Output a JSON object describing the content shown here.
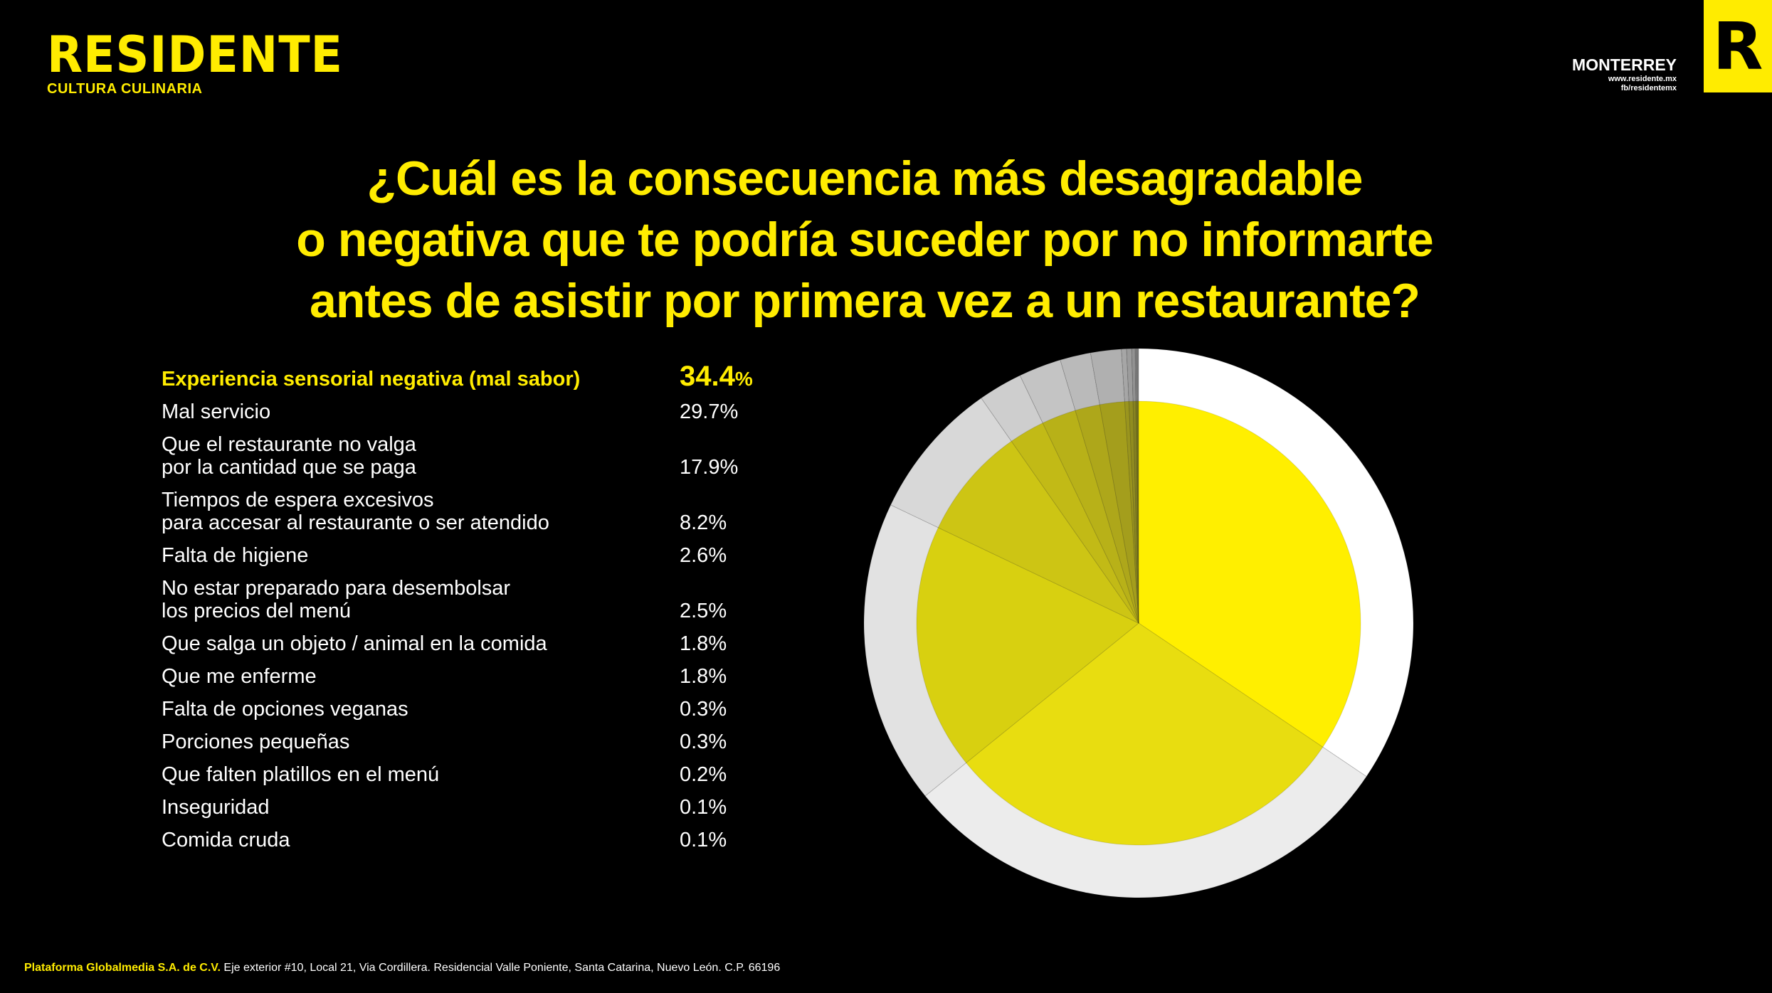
{
  "brand": {
    "name": "RESIDENTE",
    "tagline": "CULTURA CULINARIA"
  },
  "header": {
    "city": "MONTERREY",
    "website": "www.residente.mx",
    "facebook": "fb/residentemx",
    "logo_letter": "R"
  },
  "question": {
    "line1": "¿Cuál es la consecuencia más desagradable",
    "line2": "o negativa que te podría suceder por no informarte",
    "line3": "antes de asistir por primera vez a un restaurante?"
  },
  "legend": [
    {
      "label": "Experiencia sensorial negativa (mal sabor)",
      "value": "34.4",
      "unit": "%"
    },
    {
      "label": "Mal servicio",
      "value": "29.7%"
    },
    {
      "label": "Que el restaurante no valga\npor la cantidad que se paga",
      "value": "17.9%"
    },
    {
      "label": "Tiempos de espera excesivos\npara accesar al restaurante o ser atendido",
      "value": "8.2%"
    },
    {
      "label": "Falta de higiene",
      "value": "2.6%"
    },
    {
      "label": "No estar preparado para desembolsar\nlos precios del menú",
      "value": "2.5%"
    },
    {
      "label": "Que salga un objeto / animal en la comida",
      "value": "1.8%"
    },
    {
      "label": "Que me enferme",
      "value": "1.8%"
    },
    {
      "label": "Falta de opciones veganas",
      "value": "0.3%"
    },
    {
      "label": "Porciones pequeñas",
      "value": "0.3%"
    },
    {
      "label": "Que falten platillos en el menú",
      "value": "0.2%"
    },
    {
      "label": "Inseguridad",
      "value": "0.1%"
    },
    {
      "label": "Comida cruda",
      "value": "0.1%"
    }
  ],
  "footer": {
    "company": "Plataforma Globalmedia S.A. de C.V.",
    "address": "Eje exterior #10, Local 21, Via Cordillera. Residencial Valle Poniente, Santa Catarina, Nuevo León. C.P. 66196"
  },
  "chart_data": {
    "type": "pie",
    "title": "¿Cuál es la consecuencia más desagradable o negativa que te podría suceder por no informarte antes de asistir por primera vez a un restaurante?",
    "categories": [
      "Experiencia sensorial negativa (mal sabor)",
      "Mal servicio",
      "Que el restaurante no valga por la cantidad que se paga",
      "Tiempos de espera excesivos para accesar al restaurante o ser atendido",
      "Falta de higiene",
      "No estar preparado para desembolsar los precios del menú",
      "Que salga un objeto / animal en la comida",
      "Que me enferme",
      "Falta de opciones veganas",
      "Porciones pequeñas",
      "Que falten platillos en el menú",
      "Inseguridad",
      "Comida cruda"
    ],
    "values": [
      34.4,
      29.7,
      17.9,
      8.2,
      2.6,
      2.5,
      1.8,
      1.8,
      0.3,
      0.3,
      0.2,
      0.1,
      0.1
    ],
    "unit": "%",
    "colors": {
      "inner": [
        "#ffef00",
        "#e8dd10",
        "#d8d010",
        "#cdc514",
        "#c2ba16",
        "#b8b118",
        "#aea71a",
        "#a49e1c",
        "#9a951e",
        "#908c20",
        "#888420",
        "#807d20",
        "#787620"
      ],
      "outer": [
        "#ffffff",
        "#ececec",
        "#e2e2e2",
        "#d8d8d8",
        "#cecece",
        "#c4c4c4",
        "#bababa",
        "#b0b0b0",
        "#a6a6a6",
        "#9c9c9c",
        "#929292",
        "#888888",
        "#7e7e7e"
      ]
    }
  }
}
